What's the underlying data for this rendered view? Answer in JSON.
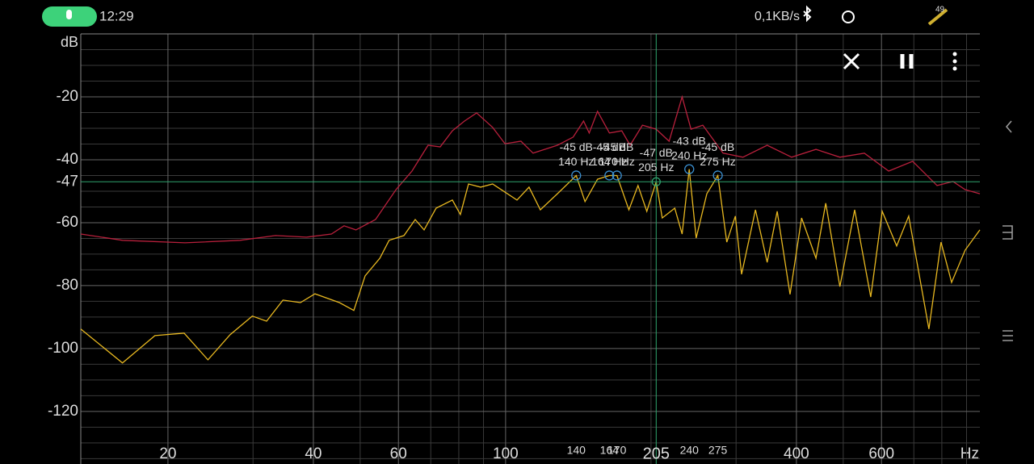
{
  "status_bar": {
    "time": "12:29",
    "network_speed": "0,1KB/s",
    "battery": "49"
  },
  "chart_data": {
    "type": "line",
    "y_label": "dB",
    "x_label": "Hz",
    "x_scale": "log",
    "grid": true,
    "xlim": [
      13.2,
      959
    ],
    "ylim": [
      -136.7,
      0
    ],
    "xticks": [
      20,
      40,
      60,
      100,
      400,
      600
    ],
    "x_minor_ticks": [
      30,
      50,
      70,
      80,
      90,
      200,
      300,
      500,
      700,
      800,
      900
    ],
    "yticks": [
      -20,
      -40,
      -60,
      -80,
      -100,
      -120
    ],
    "y_minor_ticks": [
      -5,
      -10,
      -15,
      -25,
      -30,
      -35,
      -45,
      -50,
      -55,
      -65,
      -70,
      -75,
      -85,
      -90,
      -95,
      -105,
      -110,
      -115,
      -125,
      -130,
      -135
    ],
    "series": [
      {
        "color": "#b8203c",
        "x": [
          13.2,
          16.1,
          21.7,
          28.2,
          33.4,
          38.7,
          43.6,
          46.3,
          49,
          53.8,
          59.3,
          64,
          69.1,
          73.2,
          77.6,
          82.2,
          87.1,
          94,
          99.7,
          107.6,
          114,
          128,
          138,
          145,
          149,
          155,
          164,
          174,
          181,
          192,
          205,
          218,
          232,
          242,
          256,
          282,
          310,
          348,
          391,
          439,
          492,
          553,
          621,
          696,
          782,
          844,
          894,
          959
        ],
        "values": [
          -63.6,
          -65.6,
          -66.4,
          -65.6,
          -64.1,
          -64.6,
          -63.6,
          -61,
          -62.3,
          -59,
          -49.5,
          -43.6,
          -35.4,
          -35.9,
          -30.8,
          -27.7,
          -25.1,
          -29.7,
          -34.9,
          -34.1,
          -37.9,
          -35.4,
          -32.8,
          -27.7,
          -31.5,
          -24.6,
          -31.5,
          -30.8,
          -35.4,
          -29,
          -30.3,
          -34.1,
          -20,
          -30.3,
          -29,
          -37.9,
          -39.2,
          -35.4,
          -39.2,
          -36.7,
          -39.2,
          -37.9,
          -43.6,
          -40.5,
          -48.2,
          -46.9,
          -49.5,
          -50.8
        ]
      },
      {
        "color": "#e8b820",
        "x": [
          13.2,
          16.1,
          18.8,
          21.6,
          24.2,
          26.9,
          29.9,
          32,
          34.6,
          37.6,
          40.3,
          45.3,
          48.5,
          51.2,
          54.9,
          57.4,
          61.6,
          65,
          67.8,
          71.8,
          77.6,
          80.6,
          83.8,
          88.8,
          94,
          99.7,
          105.6,
          111.8,
          118,
          128,
          140,
          146,
          155,
          164,
          170,
          180,
          188,
          196,
          205,
          211,
          224,
          232,
          240,
          248,
          261,
          275,
          287,
          299,
          308,
          329,
          348,
          365,
          388,
          410,
          439,
          460,
          492,
          528,
          570,
          602,
          645,
          683,
          752,
          797,
          838,
          894,
          959
        ],
        "values": [
          -93.8,
          -104.6,
          -95.9,
          -95.1,
          -103.6,
          -95.6,
          -89.7,
          -91.3,
          -84.6,
          -85.4,
          -82.6,
          -85.4,
          -87.9,
          -76.9,
          -71.3,
          -65.6,
          -64.1,
          -59,
          -62.3,
          -55.4,
          -52.8,
          -57.4,
          -47.7,
          -48.7,
          -47.7,
          -50.3,
          -52.8,
          -48.7,
          -55.9,
          -50.8,
          -45,
          -53.3,
          -46.2,
          -45,
          -45,
          -55.9,
          -48.2,
          -56.4,
          -47,
          -58.5,
          -55.4,
          -63.6,
          -43,
          -64.9,
          -50.8,
          -45,
          -66.2,
          -57.9,
          -76.4,
          -55.9,
          -72.6,
          -56.4,
          -82.8,
          -58.5,
          -71.3,
          -53.8,
          -80.3,
          -55.9,
          -83.6,
          -56.4,
          -67.4,
          -57.9,
          -93.8,
          -66.2,
          -79,
          -68.7,
          -62.3
        ]
      }
    ],
    "peaks": {
      "color": "#3a8fd0",
      "x": [
        140,
        164,
        170,
        240,
        275
      ],
      "values": [
        -45,
        -45,
        -45,
        -43,
        -45
      ],
      "value_labels": [
        "-45 dB",
        "-45 dB",
        "-45 dB",
        "-43 dB",
        "-45 dB"
      ],
      "x_labels": [
        "140 Hz",
        "164 Hz",
        "170 Hz",
        "240 Hz",
        "275 Hz"
      ],
      "axis_labels": [
        "140",
        "164",
        "170",
        "240",
        "275"
      ]
    },
    "cursor": {
      "color": "#2fa36e",
      "x": 205,
      "value": -47,
      "value_label": "-47 dB",
      "x_label": "205 Hz",
      "axis_x_label": "205",
      "axis_y_label": "-47"
    }
  }
}
